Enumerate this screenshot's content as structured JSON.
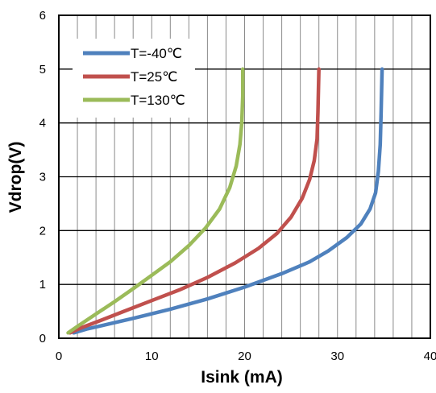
{
  "chart_data": {
    "type": "line",
    "title": "",
    "xlabel": "Isink (mA)",
    "ylabel": "Vdrop(V)",
    "xlim": [
      0,
      40
    ],
    "ylim": [
      0,
      6
    ],
    "xticks": [
      0,
      10,
      20,
      30,
      40
    ],
    "yticks": [
      0,
      1,
      2,
      3,
      4,
      5,
      6
    ],
    "x_tick_labels": [
      "0",
      "10",
      "20",
      "30",
      "40"
    ],
    "y_tick_labels": [
      "0",
      "1",
      "2",
      "3",
      "4",
      "5",
      "6"
    ],
    "grid": {
      "x_major_step": 2,
      "y_major_step": 1
    },
    "legend_position": "top-left",
    "series": [
      {
        "name": "T=-40℃",
        "color": "#4F81BD",
        "x": [
          1.6,
          3,
          5,
          8,
          12,
          16,
          20,
          24,
          27,
          29,
          31,
          32.5,
          33.5,
          34.1,
          34.4,
          34.6,
          34.7,
          34.8
        ],
        "y": [
          0.1,
          0.17,
          0.25,
          0.37,
          0.54,
          0.73,
          0.95,
          1.2,
          1.42,
          1.62,
          1.87,
          2.12,
          2.4,
          2.7,
          3.1,
          3.6,
          4.2,
          5.0
        ]
      },
      {
        "name": "T=25℃",
        "color": "#C0504D",
        "x": [
          1.2,
          2.5,
          4.5,
          7,
          10,
          13,
          16,
          19,
          21.5,
          23.5,
          25,
          26.2,
          27,
          27.5,
          27.8,
          27.9,
          28.0
        ],
        "y": [
          0.1,
          0.2,
          0.33,
          0.5,
          0.7,
          0.9,
          1.13,
          1.4,
          1.67,
          1.95,
          2.25,
          2.6,
          2.95,
          3.3,
          3.7,
          4.2,
          5.0
        ]
      },
      {
        "name": "T=130℃",
        "color": "#9BBB59",
        "x": [
          1.0,
          2,
          4,
          6,
          8,
          10,
          12,
          14,
          15.8,
          17.3,
          18.4,
          19.1,
          19.5,
          19.7,
          19.8,
          19.8
        ],
        "y": [
          0.1,
          0.22,
          0.45,
          0.68,
          0.92,
          1.17,
          1.42,
          1.72,
          2.05,
          2.4,
          2.8,
          3.2,
          3.6,
          4.0,
          4.5,
          5.0
        ]
      }
    ]
  }
}
